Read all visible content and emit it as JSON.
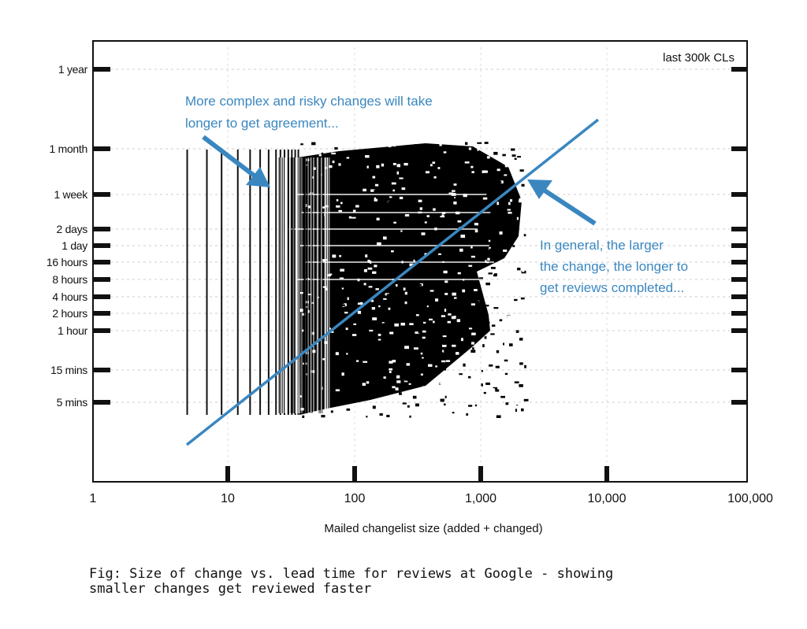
{
  "chart_data": {
    "type": "scatter",
    "title": "",
    "xlabel": "Mailed changelist size (added + changed)",
    "ylabel": "",
    "x_scale": "log",
    "y_scale": "log",
    "xlim": [
      1,
      100000
    ],
    "x_ticks": [
      "1",
      "10",
      "100",
      "1,000",
      "10,000",
      "100,000"
    ],
    "y_ticks": [
      "1 year",
      "1 month",
      "1 week",
      "2 days",
      "1 day",
      "16 hours",
      "8 hours",
      "4 hours",
      "2 hours",
      "1 hour",
      "15 mins",
      "5 mins"
    ],
    "grid": true,
    "legend_note": "last 300k CLs",
    "series": [
      {
        "kind": "scatter",
        "description_points": "dense cloud of ~300k changelists, x approx 5 to 2,000 lines, y approx 5 mins to 1 month"
      },
      {
        "kind": "trend-line",
        "color": "#3a87c0",
        "x": [
          5,
          8000
        ],
        "y": [
          "below 5 mins",
          "between 1 month and 1 year"
        ]
      }
    ],
    "annotations": [
      {
        "text_lines": [
          "More complex and risky changes will take",
          "longer to get agreement..."
        ],
        "color": "#3a87c0"
      },
      {
        "text_lines": [
          "In general, the larger",
          "the change, the longer to",
          "get reviews completed..."
        ],
        "color": "#3a87c0"
      }
    ]
  },
  "caption": "Fig: Size of change vs. lead time for reviews at Google - showing\nsmaller changes get reviewed faster"
}
